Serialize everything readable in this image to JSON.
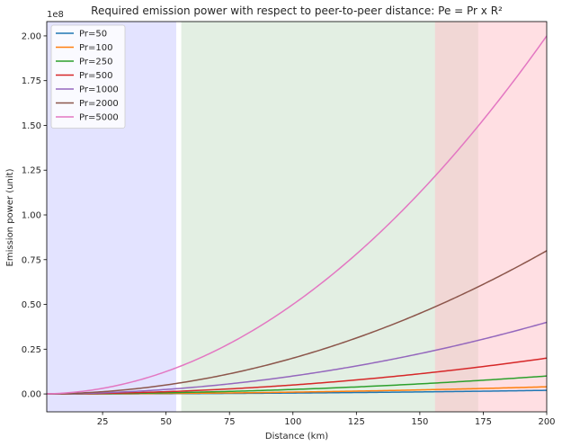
{
  "chart_data": {
    "type": "line",
    "title": "Required emission power with respect to peer-to-peer distance: Pe = Pr x R²",
    "xlabel": "Distance (km)",
    "ylabel": "Emission power (unit)",
    "y_offset_text": "1e8",
    "xlim": [
      3,
      200
    ],
    "ylim": [
      -10000000,
      208000000
    ],
    "xticks": [
      25,
      50,
      75,
      100,
      125,
      150,
      175,
      200
    ],
    "yticks": [
      0,
      25000000,
      50000000,
      75000000,
      100000000,
      125000000,
      150000000,
      175000000,
      200000000
    ],
    "ytick_labels": [
      "0.00",
      "0.25",
      "0.50",
      "0.75",
      "1.00",
      "1.25",
      "1.50",
      "1.75",
      "2.00"
    ],
    "x_range": [
      1,
      200
    ],
    "legend_position": "upper-left",
    "grid": false,
    "bands": [
      {
        "x0": 3,
        "x1": 54,
        "color": "#ccccff",
        "opacity": 0.55
      },
      {
        "x0": 56,
        "x1": 173,
        "color": "#c8e0c8",
        "opacity": 0.5
      },
      {
        "x0": 156,
        "x1": 200,
        "color": "#ffc0c8",
        "opacity": 0.5
      }
    ],
    "series": [
      {
        "name": "Pr=50",
        "pr": 50,
        "color": "#1f77b4"
      },
      {
        "name": "Pr=100",
        "pr": 100,
        "color": "#ff7f0e"
      },
      {
        "name": "Pr=250",
        "pr": 250,
        "color": "#2ca02c"
      },
      {
        "name": "Pr=500",
        "pr": 500,
        "color": "#d62728"
      },
      {
        "name": "Pr=1000",
        "pr": 1000,
        "color": "#9467bd"
      },
      {
        "name": "Pr=2000",
        "pr": 2000,
        "color": "#8c564b"
      },
      {
        "name": "Pr=5000",
        "pr": 5000,
        "color": "#e377c2"
      }
    ]
  }
}
